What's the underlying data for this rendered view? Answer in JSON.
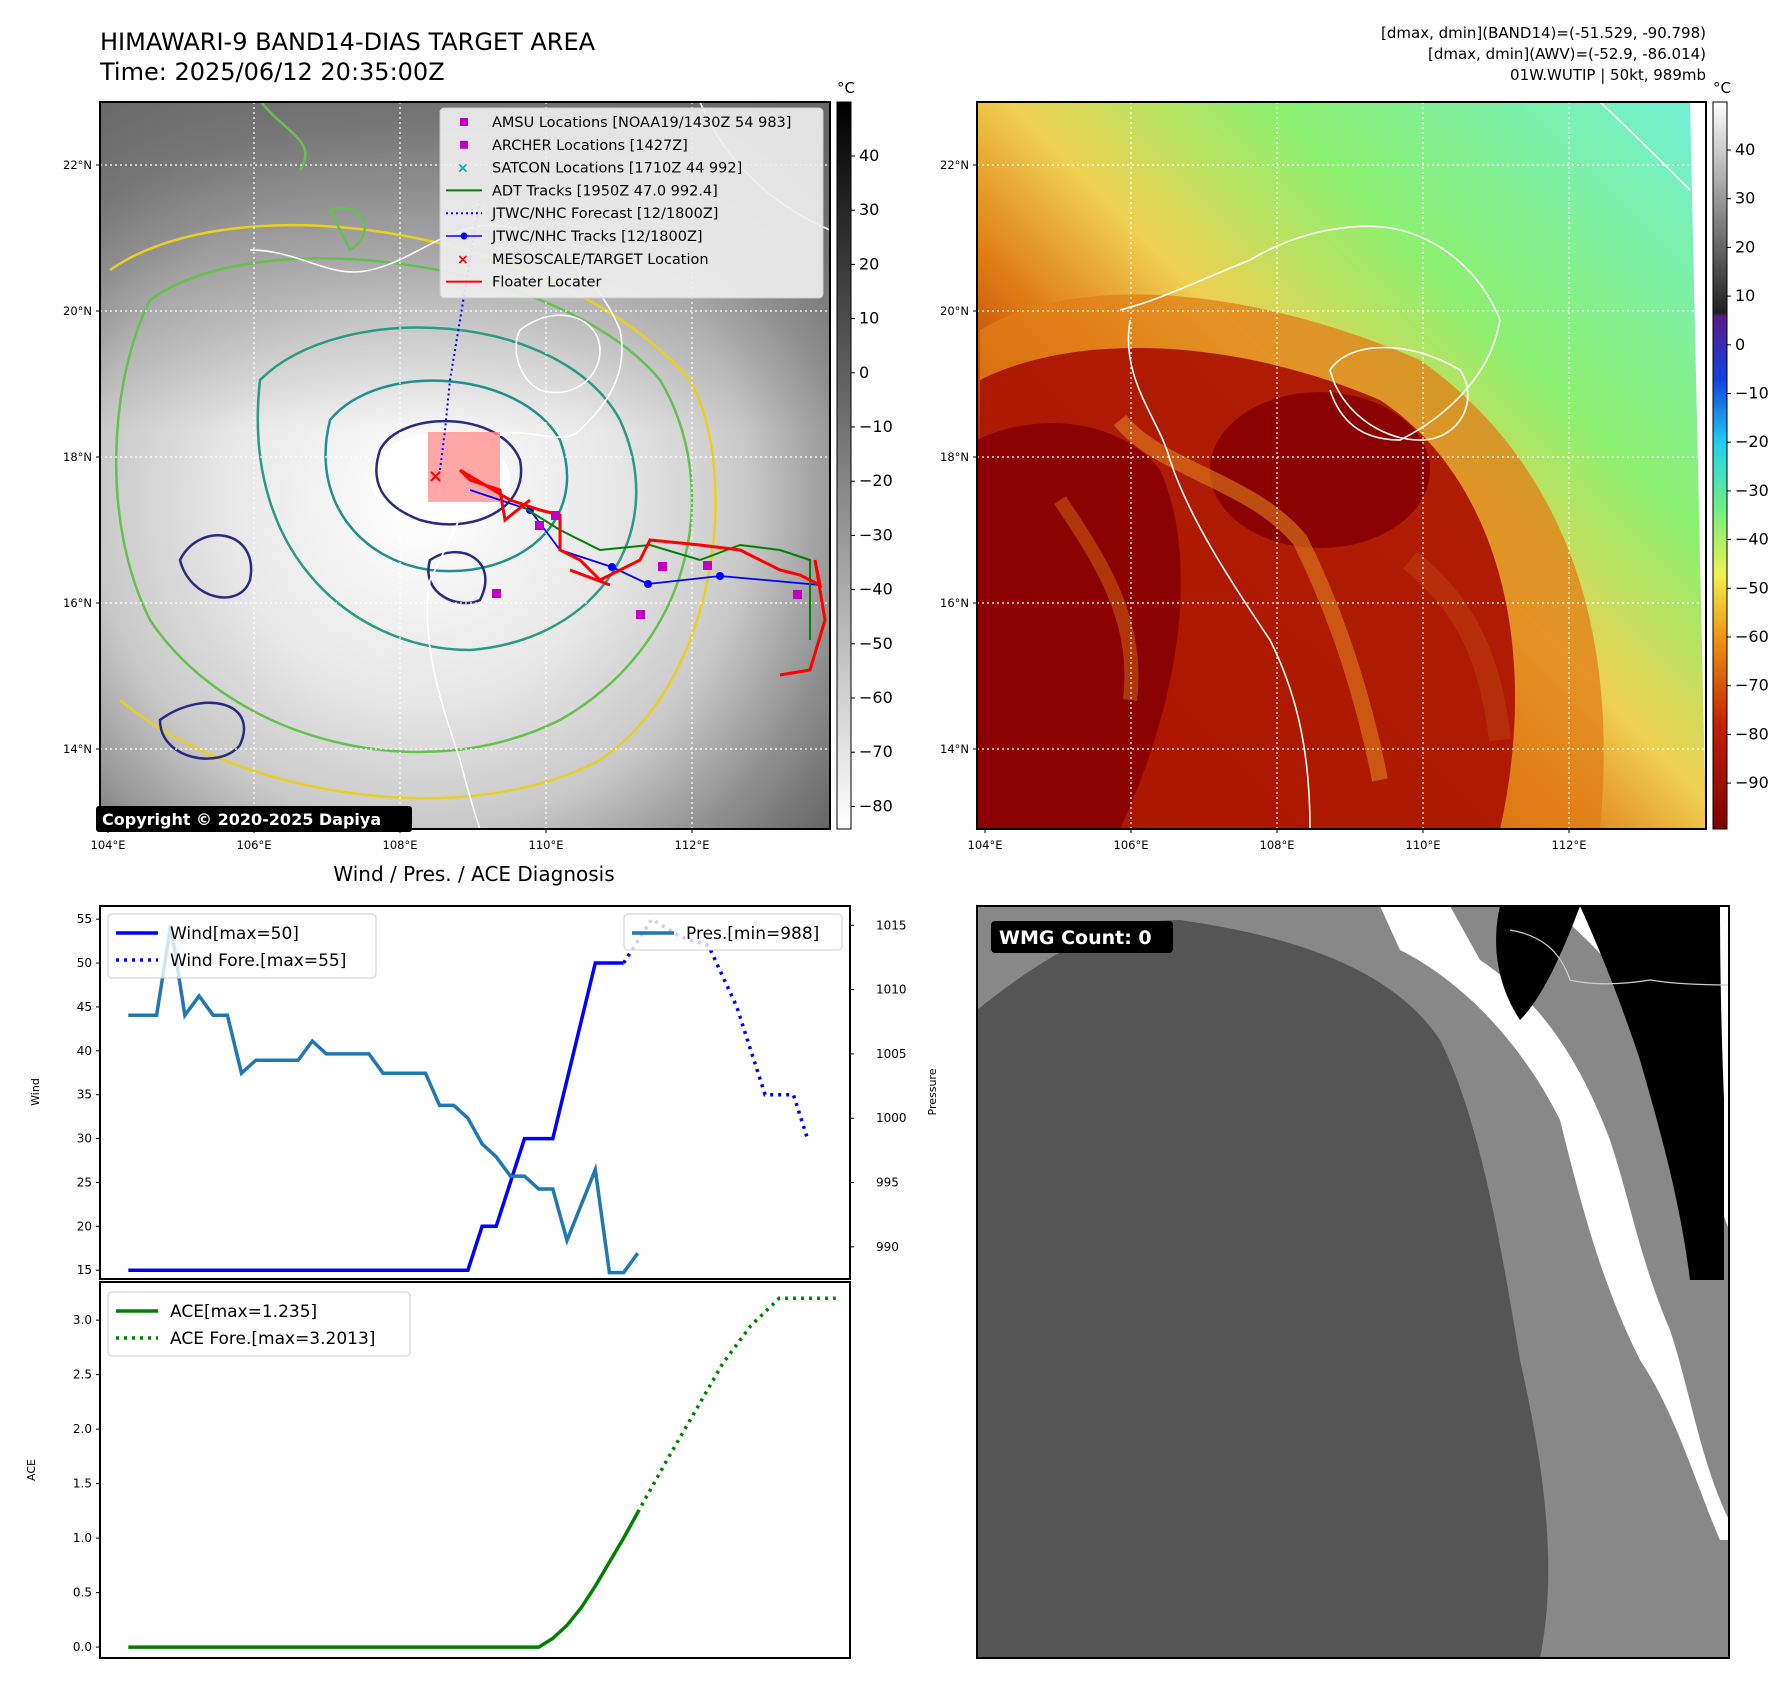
{
  "header": {
    "title": "HIMAWARI-9 BAND14-DIAS TARGET AREA",
    "time": "Time: 2025/06/12 20:35:00Z",
    "info_line1": "[dmax, dmin](BAND14)=(-51.529, -90.798)",
    "info_line2": "[dmax, dmin](AWV)=(-52.9, -86.014)",
    "info_line3": "01W.WUTIP | 50kt, 989mb"
  },
  "map_axes": {
    "lon_ticks": [
      "104°E",
      "106°E",
      "108°E",
      "110°E",
      "112°E"
    ],
    "lat_ticks": [
      "22°N",
      "20°N",
      "18°N",
      "16°N",
      "14°N"
    ]
  },
  "colorbar_unit": "°C",
  "colorbar_gray_ticks": [
    "40",
    "30",
    "20",
    "10",
    "0",
    "−10",
    "−20",
    "−30",
    "−40",
    "−50",
    "−60",
    "−70",
    "−80"
  ],
  "colorbar_color_ticks": [
    "40",
    "30",
    "20",
    "10",
    "0",
    "−10",
    "−20",
    "−30",
    "−40",
    "−50",
    "−60",
    "−70",
    "−80",
    "−90"
  ],
  "colors": {
    "ir_warm": "#5a5a5a",
    "ir_cold": "#f4f4f4",
    "awv_ocean": "#7cf58a",
    "awv_cloud": "#e07d15",
    "awv_deep": "#8b0000",
    "wind": "#0000ff",
    "pressure": "#1f77b4",
    "ace": "#008000",
    "floater": "#ff0000",
    "wmg_dark": "#555555",
    "wmg_mid": "#888888"
  },
  "legend_map": [
    {
      "label": "AMSU Locations [NOAA19/1430Z 54 983]",
      "color": "#c000c0",
      "icon": "square-marker-icon"
    },
    {
      "label": "ARCHER Locations [1427Z]",
      "color": "#c000c0",
      "icon": "square-marker-icon"
    },
    {
      "label": "SATCON Locations [1710Z 44 992]",
      "color": "#00b0b0",
      "icon": "x-marker-icon"
    },
    {
      "label": "ADT Tracks [1950Z 47.0 992.4]",
      "color": "#008000",
      "icon": "solid-line-icon"
    },
    {
      "label": "JTWC/NHC Forecast [12/1800Z]",
      "color": "#0000ff",
      "icon": "dotted-line-icon"
    },
    {
      "label": "JTWC/NHC Tracks [12/1800Z]",
      "color": "#0000ff",
      "icon": "dot-line-icon"
    },
    {
      "label": "MESOSCALE/TARGET Location",
      "color": "#ff0000",
      "icon": "x-marker-icon"
    },
    {
      "label": "Floater Locater",
      "color": "#ff0000",
      "icon": "solid-line-icon"
    }
  ],
  "copyright": "Copyright © 2020-2025 Dapiya",
  "wmg_badge": "WMG Count: 0",
  "chart_data": [
    {
      "type": "line",
      "title": "Wind / Pres. / ACE Diagnosis",
      "ylabel": "Wind",
      "ylim": [
        14,
        56.5
      ],
      "yticks": [
        15,
        20,
        25,
        30,
        35,
        40,
        45,
        50,
        55
      ],
      "y2label": "Pressure",
      "y2lim": [
        987.5,
        1016.5
      ],
      "y2ticks": [
        990,
        995,
        1000,
        1005,
        1010,
        1015
      ],
      "x_index_range": [
        -2,
        51
      ],
      "legend_left": [
        "Wind[max=50]",
        "Wind Fore.[max=55]"
      ],
      "legend_right": [
        "Pres.[min=988]"
      ],
      "series": [
        {
          "name": "Wind[max=50]",
          "axis": "left",
          "style": "solid",
          "values": [
            [
              0,
              15
            ],
            [
              24,
              15
            ],
            [
              25,
              20
            ],
            [
              26,
              20
            ],
            [
              28,
              30
            ],
            [
              30,
              30
            ],
            [
              33,
              50
            ],
            [
              35,
              50
            ]
          ]
        },
        {
          "name": "Wind Fore.[max=55]",
          "axis": "left",
          "style": "dotted",
          "values": [
            [
              35,
              50
            ],
            [
              37,
              55
            ],
            [
              39,
              53
            ],
            [
              41,
              52
            ],
            [
              43,
              45
            ],
            [
              44,
              40
            ],
            [
              45,
              35
            ],
            [
              47,
              35
            ],
            [
              48,
              30
            ]
          ]
        },
        {
          "name": "Pres.[min=988]",
          "axis": "right",
          "style": "solid",
          "values": [
            [
              0,
              1008
            ],
            [
              2,
              1008
            ],
            [
              3,
              1015
            ],
            [
              4,
              1008
            ],
            [
              5,
              1009.5
            ],
            [
              6,
              1008
            ],
            [
              7,
              1008
            ],
            [
              8,
              1003.5
            ],
            [
              9,
              1004.5
            ],
            [
              12,
              1004.5
            ],
            [
              13,
              1006
            ],
            [
              14,
              1005
            ],
            [
              17,
              1005
            ],
            [
              18,
              1003.5
            ],
            [
              21,
              1003.5
            ],
            [
              22,
              1001
            ],
            [
              23,
              1001
            ],
            [
              24,
              1000
            ],
            [
              25,
              998
            ],
            [
              26,
              997
            ],
            [
              27,
              995.5
            ],
            [
              28,
              995.5
            ],
            [
              29,
              994.5
            ],
            [
              30,
              994.5
            ],
            [
              31,
              990.5
            ],
            [
              33,
              996
            ],
            [
              34,
              988
            ],
            [
              35,
              988
            ],
            [
              36,
              989.5
            ]
          ]
        }
      ]
    },
    {
      "type": "line",
      "ylabel": "ACE",
      "ylim": [
        -0.1,
        3.35
      ],
      "yticks": [
        "0.0",
        "0.5",
        "1.0",
        "1.5",
        "2.0",
        "2.5",
        "3.0"
      ],
      "x_index_range": [
        -2,
        51
      ],
      "legend": [
        "ACE[max=1.235]",
        "ACE Fore.[max=3.2013]"
      ],
      "series": [
        {
          "name": "ACE[max=1.235]",
          "style": "solid",
          "values": [
            [
              0,
              0
            ],
            [
              29,
              0
            ],
            [
              30,
              0.08
            ],
            [
              31,
              0.2
            ],
            [
              32,
              0.36
            ],
            [
              33,
              0.56
            ],
            [
              34,
              0.78
            ],
            [
              35,
              1.0
            ],
            [
              36,
              1.235
            ]
          ]
        },
        {
          "name": "ACE Fore.[max=3.2013]",
          "style": "dotted",
          "values": [
            [
              36,
              1.235
            ],
            [
              38,
              1.7
            ],
            [
              40,
              2.15
            ],
            [
              42,
              2.6
            ],
            [
              44,
              2.95
            ],
            [
              46,
              3.2
            ],
            [
              48,
              3.2013
            ],
            [
              50,
              3.2013
            ]
          ]
        }
      ]
    }
  ]
}
